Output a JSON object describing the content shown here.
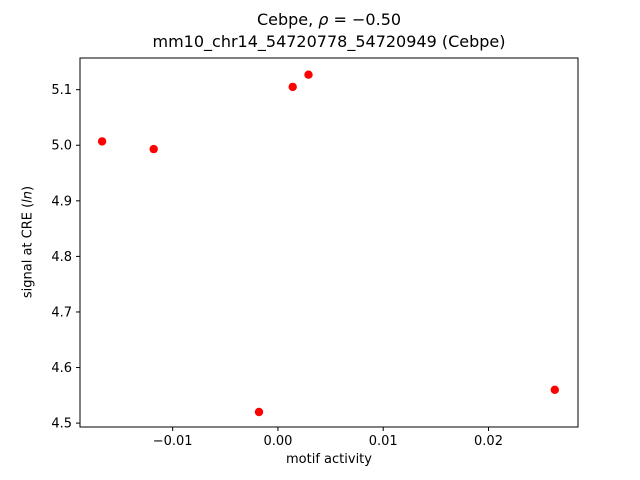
{
  "title": {
    "prefix": "Cebpe, ",
    "rho": "ρ",
    "equals": " = −0.50",
    "line2": "mm10_chr14_54720778_54720949 (Cebpe)"
  },
  "chart_data": {
    "type": "scatter",
    "title": "Cebpe, ρ = −0.50",
    "subtitle": "mm10_chr14_54720778_54720949 (Cebpe)",
    "xlabel": "motif activity",
    "ylabel_prefix": "signal at CRE (",
    "ylabel_italic": "ln",
    "ylabel_suffix": ")",
    "series": [
      {
        "name": "CRE signal vs motif activity",
        "color": "#ff0000",
        "x": [
          -0.0167,
          -0.0118,
          0.0014,
          0.0029,
          -0.0018,
          0.0263
        ],
        "y": [
          5.007,
          4.993,
          5.105,
          5.127,
          4.52,
          4.56
        ]
      }
    ],
    "xlim": [
      -0.0188,
      0.0285
    ],
    "ylim": [
      4.493,
      5.157
    ],
    "xticks": [
      -0.01,
      0.0,
      0.01,
      0.02
    ],
    "xtick_labels": [
      "−0.01",
      "0.00",
      "0.01",
      "0.02"
    ],
    "yticks": [
      4.5,
      4.6,
      4.7,
      4.8,
      4.9,
      5.0,
      5.1
    ],
    "ytick_labels": [
      "4.5",
      "4.6",
      "4.7",
      "4.8",
      "4.9",
      "5.0",
      "5.1"
    ],
    "grid": false,
    "legend": "none",
    "marker": "circle",
    "marker_color": "#ff0000",
    "spine_color": "#000000"
  }
}
